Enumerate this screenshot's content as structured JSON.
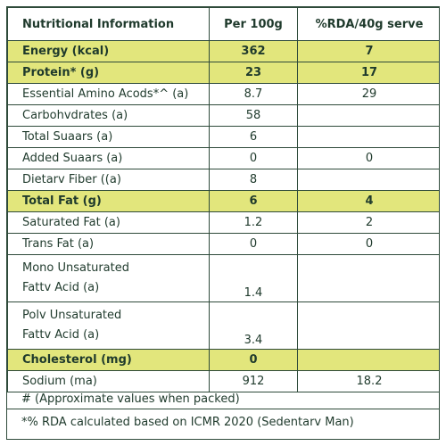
{
  "header": {
    "col1": "Nutritional Information",
    "col2": "Per 100g",
    "col3": "%RDA/40g serve"
  },
  "rows": [
    {
      "name": "Energy (kcal)",
      "per100": "362",
      "rda": "7"
    },
    {
      "name": "Protein* (g)",
      "per100": "23",
      "rda": "17"
    },
    {
      "name": "Essential Amino Acods*^ (a)",
      "per100": "8.7",
      "rda": "29"
    },
    {
      "name": "Carbohvdrates (a)",
      "per100": "58",
      "rda": ""
    },
    {
      "name": "Total Suaars (a)",
      "per100": "6",
      "rda": ""
    },
    {
      "name": "Added Suaars (a)",
      "per100": "0",
      "rda": "0"
    },
    {
      "name": "Dietarv Fiber ((a)",
      "per100": "8",
      "rda": ""
    },
    {
      "name": "Total Fat (g)",
      "per100": "6",
      "rda": "4"
    },
    {
      "name": "Saturated Fat (a)",
      "per100": "1.2",
      "rda": "2"
    },
    {
      "name": "Trans Fat (a)",
      "per100": "0",
      "rda": "0"
    },
    {
      "name_line1": "Mono Unsaturated",
      "name_line2": "Fattv Acid (a)",
      "per100": "1.4",
      "rda": ""
    },
    {
      "name_line1": "Polv Unsaturated",
      "name_line2": "Fattv Acid (a)",
      "per100": "3.4",
      "rda": ""
    },
    {
      "name": "Cholesterol (mg)",
      "per100": "0",
      "rda": ""
    },
    {
      "name": "Sodium (ma)",
      "per100": "912",
      "rda": "18.2"
    }
  ],
  "footnotes": {
    "note1": "# (Approximate values when packed)",
    "note2": "*% RDA calculated based on ICMR 2020 (Sedentarv Man)"
  },
  "colors": {
    "highlight": "#e2e67c",
    "border": "#2e4a3a",
    "text": "#1f3a2c"
  }
}
